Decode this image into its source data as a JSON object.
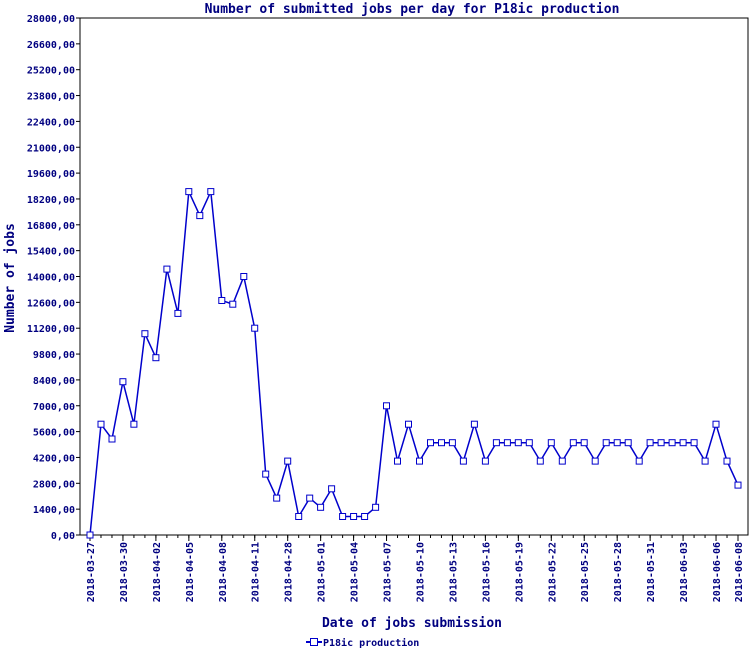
{
  "chart_data": {
    "type": "line",
    "title": "Number of submitted jobs per day for P18ic production",
    "xlabel": "Date of jobs submission",
    "ylabel": "Number of jobs",
    "ylim": [
      0,
      28000
    ],
    "y_ticks": [
      "0,00",
      "1400,00",
      "2800,00",
      "4200,00",
      "5600,00",
      "7000,00",
      "8400,00",
      "9800,00",
      "11200,00",
      "12600,00",
      "14000,00",
      "15400,00",
      "16800,00",
      "18200,00",
      "19600,00",
      "21000,00",
      "22400,00",
      "23800,00",
      "25200,00",
      "26600,00",
      "28000,00"
    ],
    "x_tick_labels": [
      {
        "label": "2018-03-27",
        "index": 0
      },
      {
        "label": "2018-03-30",
        "index": 3
      },
      {
        "label": "2018-04-02",
        "index": 6
      },
      {
        "label": "2018-04-05",
        "index": 9
      },
      {
        "label": "2018-04-08",
        "index": 12
      },
      {
        "label": "2018-04-11",
        "index": 15
      },
      {
        "label": "2018-04-28",
        "index": 18
      },
      {
        "label": "2018-05-01",
        "index": 21
      },
      {
        "label": "2018-05-04",
        "index": 24
      },
      {
        "label": "2018-05-07",
        "index": 27
      },
      {
        "label": "2018-05-10",
        "index": 30
      },
      {
        "label": "2018-05-13",
        "index": 33
      },
      {
        "label": "2018-05-16",
        "index": 36
      },
      {
        "label": "2018-05-19",
        "index": 39
      },
      {
        "label": "2018-05-22",
        "index": 42
      },
      {
        "label": "2018-05-25",
        "index": 45
      },
      {
        "label": "2018-05-28",
        "index": 48
      },
      {
        "label": "2018-05-31",
        "index": 51
      },
      {
        "label": "2018-06-03",
        "index": 54
      },
      {
        "label": "2018-06-06",
        "index": 57
      },
      {
        "label": "2018-06-08",
        "index": 59
      }
    ],
    "grid": false,
    "legend_placement": "bottom-center",
    "series": [
      {
        "name": "P18ic production",
        "color": "#0000cc",
        "marker": "square",
        "values": [
          0,
          6000,
          5200,
          8300,
          6000,
          10900,
          9600,
          14400,
          12000,
          18600,
          17300,
          18600,
          12700,
          12500,
          14000,
          11200,
          3300,
          2000,
          4000,
          1000,
          2000,
          1500,
          2500,
          1000,
          1000,
          1000,
          1500,
          7000,
          4000,
          6000,
          4000,
          5000,
          5000,
          5000,
          4000,
          6000,
          4000,
          5000,
          5000,
          5000,
          5000,
          4000,
          5000,
          4000,
          5000,
          5000,
          4000,
          5000,
          5000,
          5000,
          4000,
          5000,
          5000,
          5000,
          5000,
          5000,
          4000,
          6000,
          4000,
          2700
        ]
      }
    ]
  }
}
